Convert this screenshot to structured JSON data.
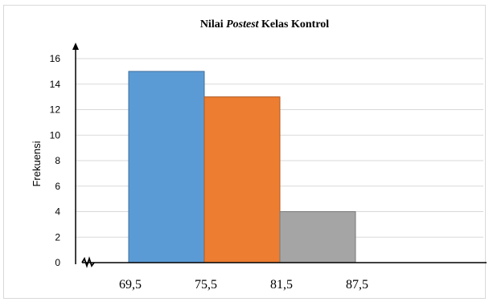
{
  "chart_data": {
    "type": "bar",
    "title": {
      "prefix": "Nilai ",
      "emphasis": "Postest",
      "suffix": " Kelas Kontrol"
    },
    "ylabel": "Frekuensi",
    "xlabel": "",
    "ylim": [
      0,
      16
    ],
    "yticks": [
      0,
      2,
      4,
      6,
      8,
      10,
      12,
      14,
      16
    ],
    "grid": true,
    "axis_break": true,
    "bin_edges": [
      "69,5",
      "75,5",
      "81,5",
      "87,5"
    ],
    "values": [
      15,
      13,
      4
    ],
    "colors": [
      "#5b9bd5",
      "#ed7d31",
      "#a5a5a5"
    ],
    "border_colors": [
      "#41719c",
      "#ae5a21",
      "#787878"
    ]
  }
}
